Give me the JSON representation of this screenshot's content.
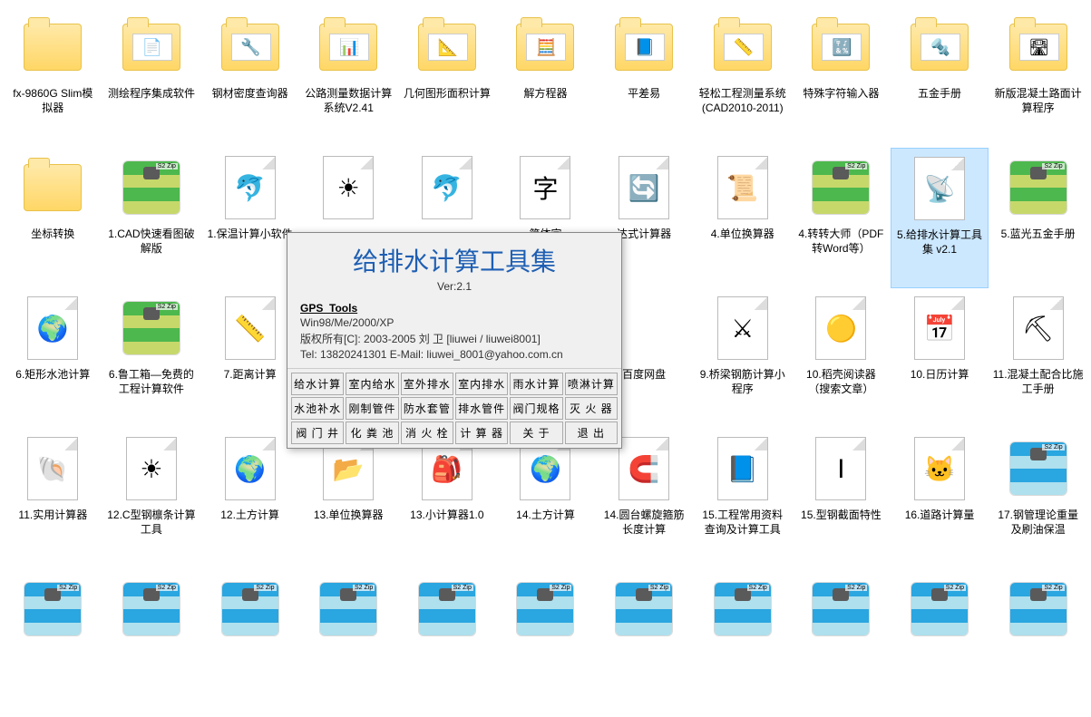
{
  "colors": {
    "background": "#ffffff",
    "text": "#000000",
    "dialog_title": "#1e5fb3",
    "selection_bg": "#cce8ff",
    "selection_border": "#99d1ff",
    "folder_light": "#ffe9a8",
    "folder_dark": "#ffd766",
    "archive_green_top": "#4db84d",
    "archive_green_bot": "#c7d86a",
    "archive_blue_top": "#2aa6e0",
    "archive_blue_bot": "#aee0ee"
  },
  "items": [
    {
      "label": "fx-9860G Slim模拟器",
      "icon": "folder",
      "glyph": ""
    },
    {
      "label": "测绘程序集成软件",
      "icon": "folder",
      "glyph": "📄"
    },
    {
      "label": "钢材密度查询器",
      "icon": "folder",
      "glyph": "🔧"
    },
    {
      "label": "公路测量数据计算系统V2.41",
      "icon": "folder",
      "glyph": "📊"
    },
    {
      "label": "几何图形面积计算",
      "icon": "folder",
      "glyph": "📐"
    },
    {
      "label": "解方程器",
      "icon": "folder",
      "glyph": "🧮"
    },
    {
      "label": "平差易",
      "icon": "folder",
      "glyph": "📘"
    },
    {
      "label": "轻松工程测量系统(CAD2010-2011)",
      "icon": "folder",
      "glyph": "📏"
    },
    {
      "label": "特殊字符输入器",
      "icon": "folder",
      "glyph": "🔣"
    },
    {
      "label": "五金手册",
      "icon": "folder",
      "glyph": "🔩"
    },
    {
      "label": "新版混凝土路面计算程序",
      "icon": "folder",
      "glyph": "🛣"
    },
    {
      "label": "坐标转换",
      "icon": "folder",
      "glyph": ""
    },
    {
      "label": "1.CAD快速看图破解版",
      "icon": "archive-green",
      "glyph": ""
    },
    {
      "label": "1.保温计算小软件",
      "icon": "paper",
      "glyph": "🐬"
    },
    {
      "label": "",
      "icon": "paper",
      "glyph": "☀"
    },
    {
      "label": "",
      "icon": "paper",
      "glyph": "🐬"
    },
    {
      "label": "简体字",
      "icon": "paper",
      "glyph": "字"
    },
    {
      "label": "达式计算器",
      "icon": "paper",
      "glyph": "🔄"
    },
    {
      "label": "4.单位换算器",
      "icon": "paper",
      "glyph": "📜"
    },
    {
      "label": "4.转转大师（PDF转Word等）",
      "icon": "archive-green",
      "glyph": ""
    },
    {
      "label": "5.给排水计算工具集 v2.1",
      "icon": "paper",
      "glyph": "📡",
      "selected": true
    },
    {
      "label": "5.蓝光五金手册",
      "icon": "archive-green",
      "glyph": ""
    },
    {
      "label": "6.矩形水池计算",
      "icon": "paper",
      "glyph": "🌍"
    },
    {
      "label": "6.鲁工箱—免费的工程计算软件",
      "icon": "archive-green",
      "glyph": ""
    },
    {
      "label": "7.距离计算",
      "icon": "paper",
      "glyph": "📏"
    },
    {
      "label": "",
      "icon": "",
      "glyph": ""
    },
    {
      "label": "",
      "icon": "",
      "glyph": ""
    },
    {
      "label": "",
      "icon": "",
      "glyph": ""
    },
    {
      "label": "百度网盘",
      "icon": "",
      "glyph": ""
    },
    {
      "label": "9.桥梁钢筋计算小程序",
      "icon": "paper",
      "glyph": "⚔"
    },
    {
      "label": "10.稻壳阅读器（搜索文章）",
      "icon": "paper",
      "glyph": "🟡"
    },
    {
      "label": "10.日历计算",
      "icon": "paper",
      "glyph": "📅"
    },
    {
      "label": "11.混凝土配合比施工手册",
      "icon": "paper",
      "glyph": "⛏"
    },
    {
      "label": "11.实用计算器",
      "icon": "paper",
      "glyph": "🐚"
    },
    {
      "label": "12.C型钢檩条计算工具",
      "icon": "paper",
      "glyph": "☀"
    },
    {
      "label": "12.土方计算",
      "icon": "paper",
      "glyph": "🌍"
    },
    {
      "label": "13.单位换算器",
      "icon": "paper",
      "glyph": "📂"
    },
    {
      "label": "13.小计算器1.0",
      "icon": "paper",
      "glyph": "🎒"
    },
    {
      "label": "14.土方计算",
      "icon": "paper",
      "glyph": "🌍"
    },
    {
      "label": "14.圆台螺旋箍筋长度计算",
      "icon": "paper",
      "glyph": "🧲"
    },
    {
      "label": "15.工程常用资料查询及计算工具",
      "icon": "paper",
      "glyph": "📘"
    },
    {
      "label": "15.型钢截面特性",
      "icon": "paper",
      "glyph": "Ⅰ"
    },
    {
      "label": "16.道路计算量",
      "icon": "paper",
      "glyph": "🐱"
    },
    {
      "label": "17.钢管理论重量及刷油保温",
      "icon": "archive-blue",
      "glyph": ""
    },
    {
      "label": "",
      "icon": "archive-blue",
      "glyph": ""
    },
    {
      "label": "",
      "icon": "archive-blue",
      "glyph": ""
    },
    {
      "label": "",
      "icon": "archive-blue",
      "glyph": ""
    },
    {
      "label": "",
      "icon": "archive-blue",
      "glyph": ""
    },
    {
      "label": "",
      "icon": "archive-blue",
      "glyph": ""
    },
    {
      "label": "",
      "icon": "archive-blue",
      "glyph": ""
    },
    {
      "label": "",
      "icon": "archive-blue",
      "glyph": ""
    },
    {
      "label": "",
      "icon": "archive-blue",
      "glyph": ""
    },
    {
      "label": "",
      "icon": "archive-blue",
      "glyph": ""
    },
    {
      "label": "",
      "icon": "archive-blue",
      "glyph": ""
    },
    {
      "label": "",
      "icon": "archive-blue",
      "glyph": ""
    }
  ],
  "dialog": {
    "title": "给排水计算工具集",
    "ver": "Ver:2.1",
    "subtitle": "GPS_Tools",
    "os": "Win98/Me/2000/XP",
    "copyright": "版权所有[C]: 2003-2005  刘 卫 [liuwei / liuwei8001]",
    "contact": "Tel: 13820241301    E-Mail: liuwei_8001@yahoo.com.cn",
    "buttons": [
      "给水计算",
      "室内给水",
      "室外排水",
      "室内排水",
      "雨水计算",
      "喷淋计算",
      "水池补水",
      "刚制管件",
      "防水套管",
      "排水管件",
      "阀门规格",
      "灭 火 器",
      "阀 门 井",
      "化 粪 池",
      "消 火 栓",
      "计 算 器",
      "关    于",
      "退    出"
    ]
  }
}
